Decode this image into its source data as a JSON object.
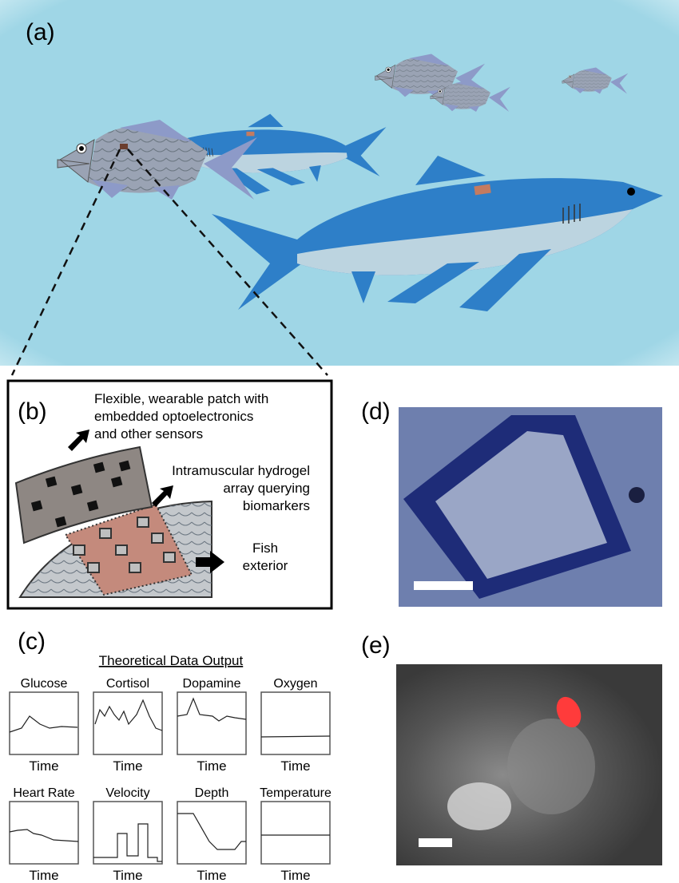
{
  "panels": {
    "a": {
      "label": "(a)"
    },
    "b": {
      "label": "(b)",
      "patch_lines": [
        "Flexible, wearable patch with",
        "embedded optoelectronics",
        "and other sensors"
      ],
      "hydrogel_lines": [
        "Intramuscular hydrogel",
        "array querying",
        "biomarkers"
      ],
      "exterior_lines": [
        "Fish",
        "exterior"
      ]
    },
    "c": {
      "label": "(c)",
      "title": "Theoretical Data Output",
      "plots": [
        {
          "title": "Glucose",
          "x_label": "Time"
        },
        {
          "title": "Cortisol",
          "x_label": "Time"
        },
        {
          "title": "Dopamine",
          "x_label": "Time"
        },
        {
          "title": "Oxygen",
          "x_label": "Time"
        },
        {
          "title": "Heart Rate",
          "x_label": "Time"
        },
        {
          "title": "Velocity",
          "x_label": "Time"
        },
        {
          "title": "Depth",
          "x_label": "Time"
        },
        {
          "title": "Temperature",
          "x_label": "Time"
        }
      ]
    },
    "d": {
      "label": "(d)"
    },
    "e": {
      "label": "(e)"
    }
  }
}
